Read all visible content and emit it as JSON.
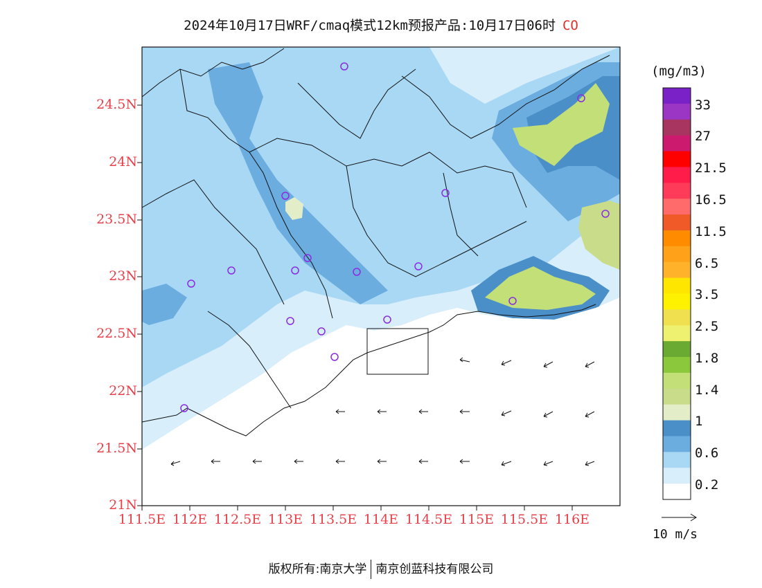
{
  "title": {
    "main": "2024年10月17日WRF/cmaq模式12km预报产品:10月17日06时",
    "pollutant": "CO"
  },
  "axes": {
    "y_ticks": [
      "24.5N",
      "24N",
      "23.5N",
      "23N",
      "22.5N",
      "22N",
      "21.5N",
      "21N"
    ],
    "x_ticks": [
      "111.5E",
      "112E",
      "112.5E",
      "113E",
      "113.5E",
      "114E",
      "114.5E",
      "115E",
      "115.5E",
      "116E"
    ]
  },
  "colorbar": {
    "unit": "(mg/m3)",
    "labels": [
      "33",
      "27",
      "21.5",
      "16.5",
      "11.5",
      "6.5",
      "3.5",
      "2.5",
      "1.8",
      "1.4",
      "1",
      "0.6",
      "0.2"
    ],
    "colors_top_to_bottom": [
      "#7a22c8",
      "#9a35c4",
      "#a83560",
      "#cc1a6e",
      "#ff0000",
      "#ff1b4a",
      "#ff3b5a",
      "#ff6a6a",
      "#f05a28",
      "#ff8c00",
      "#ffa21a",
      "#ffb22a",
      "#ffe600",
      "#fff200",
      "#f0e050",
      "#eef070",
      "#6aaa32",
      "#8cc83c",
      "#c3df78",
      "#c8dc8a",
      "#e3eec8",
      "#4a8fc8",
      "#6cade0",
      "#a8d8f4",
      "#d8eefb",
      "#ffffff"
    ]
  },
  "wind_legend": {
    "label": "10 m/s"
  },
  "footer": {
    "left": "版权所有:南京大学",
    "right": "南京创蓝科技有限公司"
  },
  "colors": {
    "tick_label": "#e8404a",
    "pollutant_label": "#e0302a",
    "station_marker": "#8a2be2"
  }
}
